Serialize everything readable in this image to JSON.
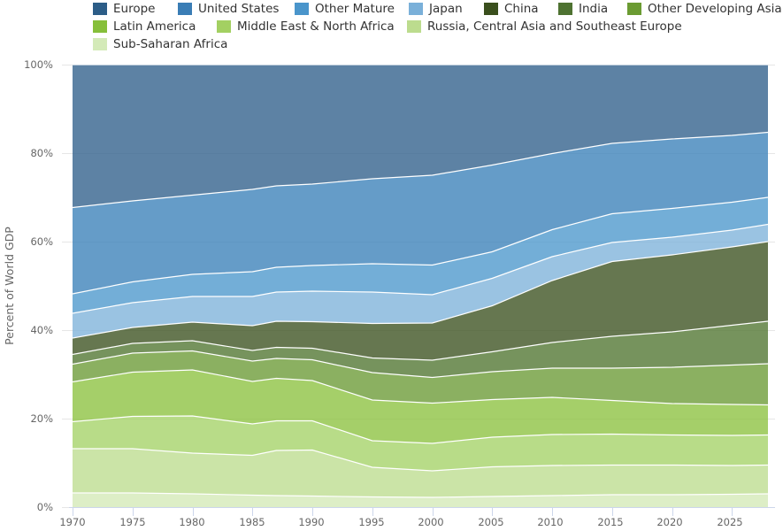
{
  "chart_data": {
    "type": "area",
    "stacking": "percent",
    "title": "",
    "xlabel": "",
    "ylabel": "Percent of World GDP",
    "xlim": [
      1970,
      2028
    ],
    "ylim": [
      0,
      100
    ],
    "x_ticks": [
      "1970",
      "1975",
      "1980",
      "1985",
      "1990",
      "1995",
      "2000",
      "2005",
      "2010",
      "2015",
      "2020",
      "2025"
    ],
    "y_ticks": [
      "0%",
      "20%",
      "40%",
      "60%",
      "80%",
      "100%"
    ],
    "grid": true,
    "legend_position": "top",
    "keyframe_years": [
      1970,
      1975,
      1980,
      1985,
      1987,
      1990,
      1995,
      2000,
      2005,
      2010,
      2015,
      2020,
      2025,
      2028
    ],
    "series": [
      {
        "name": "Europe",
        "color": "#2f5f8a",
        "values": [
          32.3,
          30.8,
          29.5,
          28.2,
          27.4,
          27.0,
          25.8,
          25.0,
          22.7,
          20.1,
          17.8,
          16.8,
          16.0,
          15.3
        ]
      },
      {
        "name": "United States",
        "color": "#3a80b8",
        "values": [
          19.5,
          18.3,
          17.9,
          18.6,
          18.4,
          18.4,
          19.2,
          20.3,
          19.6,
          17.2,
          15.9,
          15.7,
          15.1,
          14.7
        ]
      },
      {
        "name": "Other Mature",
        "color": "#4c97cc",
        "values": [
          4.4,
          4.7,
          5.0,
          5.6,
          5.6,
          5.8,
          6.4,
          6.7,
          6.0,
          6.1,
          6.5,
          6.5,
          6.3,
          6.1
        ]
      },
      {
        "name": "Japan",
        "color": "#7eb2da",
        "values": [
          5.6,
          5.6,
          5.8,
          6.6,
          6.6,
          6.9,
          7.1,
          6.4,
          6.2,
          5.4,
          4.3,
          4.0,
          3.8,
          3.9
        ]
      },
      {
        "name": "China",
        "color": "#3b511f",
        "values": [
          3.7,
          3.6,
          4.2,
          5.6,
          5.9,
          6.0,
          7.8,
          8.4,
          10.4,
          14.0,
          16.9,
          17.4,
          17.7,
          18.0
        ]
      },
      {
        "name": "India",
        "color": "#4f7430",
        "values": [
          2.2,
          2.2,
          2.3,
          2.4,
          2.5,
          2.6,
          3.3,
          3.9,
          4.5,
          5.8,
          7.2,
          8.0,
          9.0,
          9.6
        ]
      },
      {
        "name": "Other Developing Asia",
        "color": "#6a9a35",
        "values": [
          4.0,
          4.3,
          4.3,
          4.6,
          4.5,
          4.7,
          6.2,
          5.8,
          6.3,
          6.6,
          7.3,
          8.2,
          8.9,
          9.3
        ]
      },
      {
        "name": "Latin America",
        "color": "#8cc23f",
        "values": [
          9.0,
          10.0,
          10.4,
          9.6,
          9.6,
          9.1,
          9.2,
          9.1,
          8.5,
          8.4,
          7.6,
          7.1,
          7.0,
          6.8
        ]
      },
      {
        "name": "Middle East & North Africa",
        "color": "#a4d266",
        "values": [
          6.1,
          7.3,
          8.4,
          7.1,
          6.7,
          6.6,
          6.0,
          6.2,
          6.7,
          7.0,
          7.0,
          6.8,
          6.8,
          6.8
        ]
      },
      {
        "name": "Russia, Central Asia and Southeast Europe",
        "color": "#bcdc8e",
        "values": [
          10.0,
          10.0,
          9.2,
          9.0,
          10.2,
          10.4,
          6.7,
          6.0,
          6.7,
          6.8,
          6.7,
          6.7,
          6.5,
          6.5
        ]
      },
      {
        "name": "Sub-Saharan Africa",
        "color": "#d3e9b6",
        "values": [
          3.2,
          3.2,
          3.0,
          2.7,
          2.6,
          2.5,
          2.3,
          2.2,
          2.4,
          2.6,
          2.8,
          2.8,
          2.9,
          3.0
        ]
      }
    ]
  },
  "legend": {
    "items": [
      {
        "label": "Europe",
        "color": "#2c5d87"
      },
      {
        "label": "United States",
        "color": "#3a7db5"
      },
      {
        "label": "Other Mature",
        "color": "#4a95cb"
      },
      {
        "label": "Japan",
        "color": "#7ab0d9"
      },
      {
        "label": "China",
        "color": "#3a4f1d"
      },
      {
        "label": "India",
        "color": "#4e7231"
      },
      {
        "label": "Other Developing Asia",
        "color": "#6b9b32"
      },
      {
        "label": "Latin America",
        "color": "#86bf3a"
      },
      {
        "label": "Middle East & North Africa",
        "color": "#a3d062"
      },
      {
        "label": "Russia, Central Asia and Southeast Europe",
        "color": "#bcdc8e"
      },
      {
        "label": "Sub-Saharan Africa",
        "color": "#d4eab8"
      }
    ]
  }
}
